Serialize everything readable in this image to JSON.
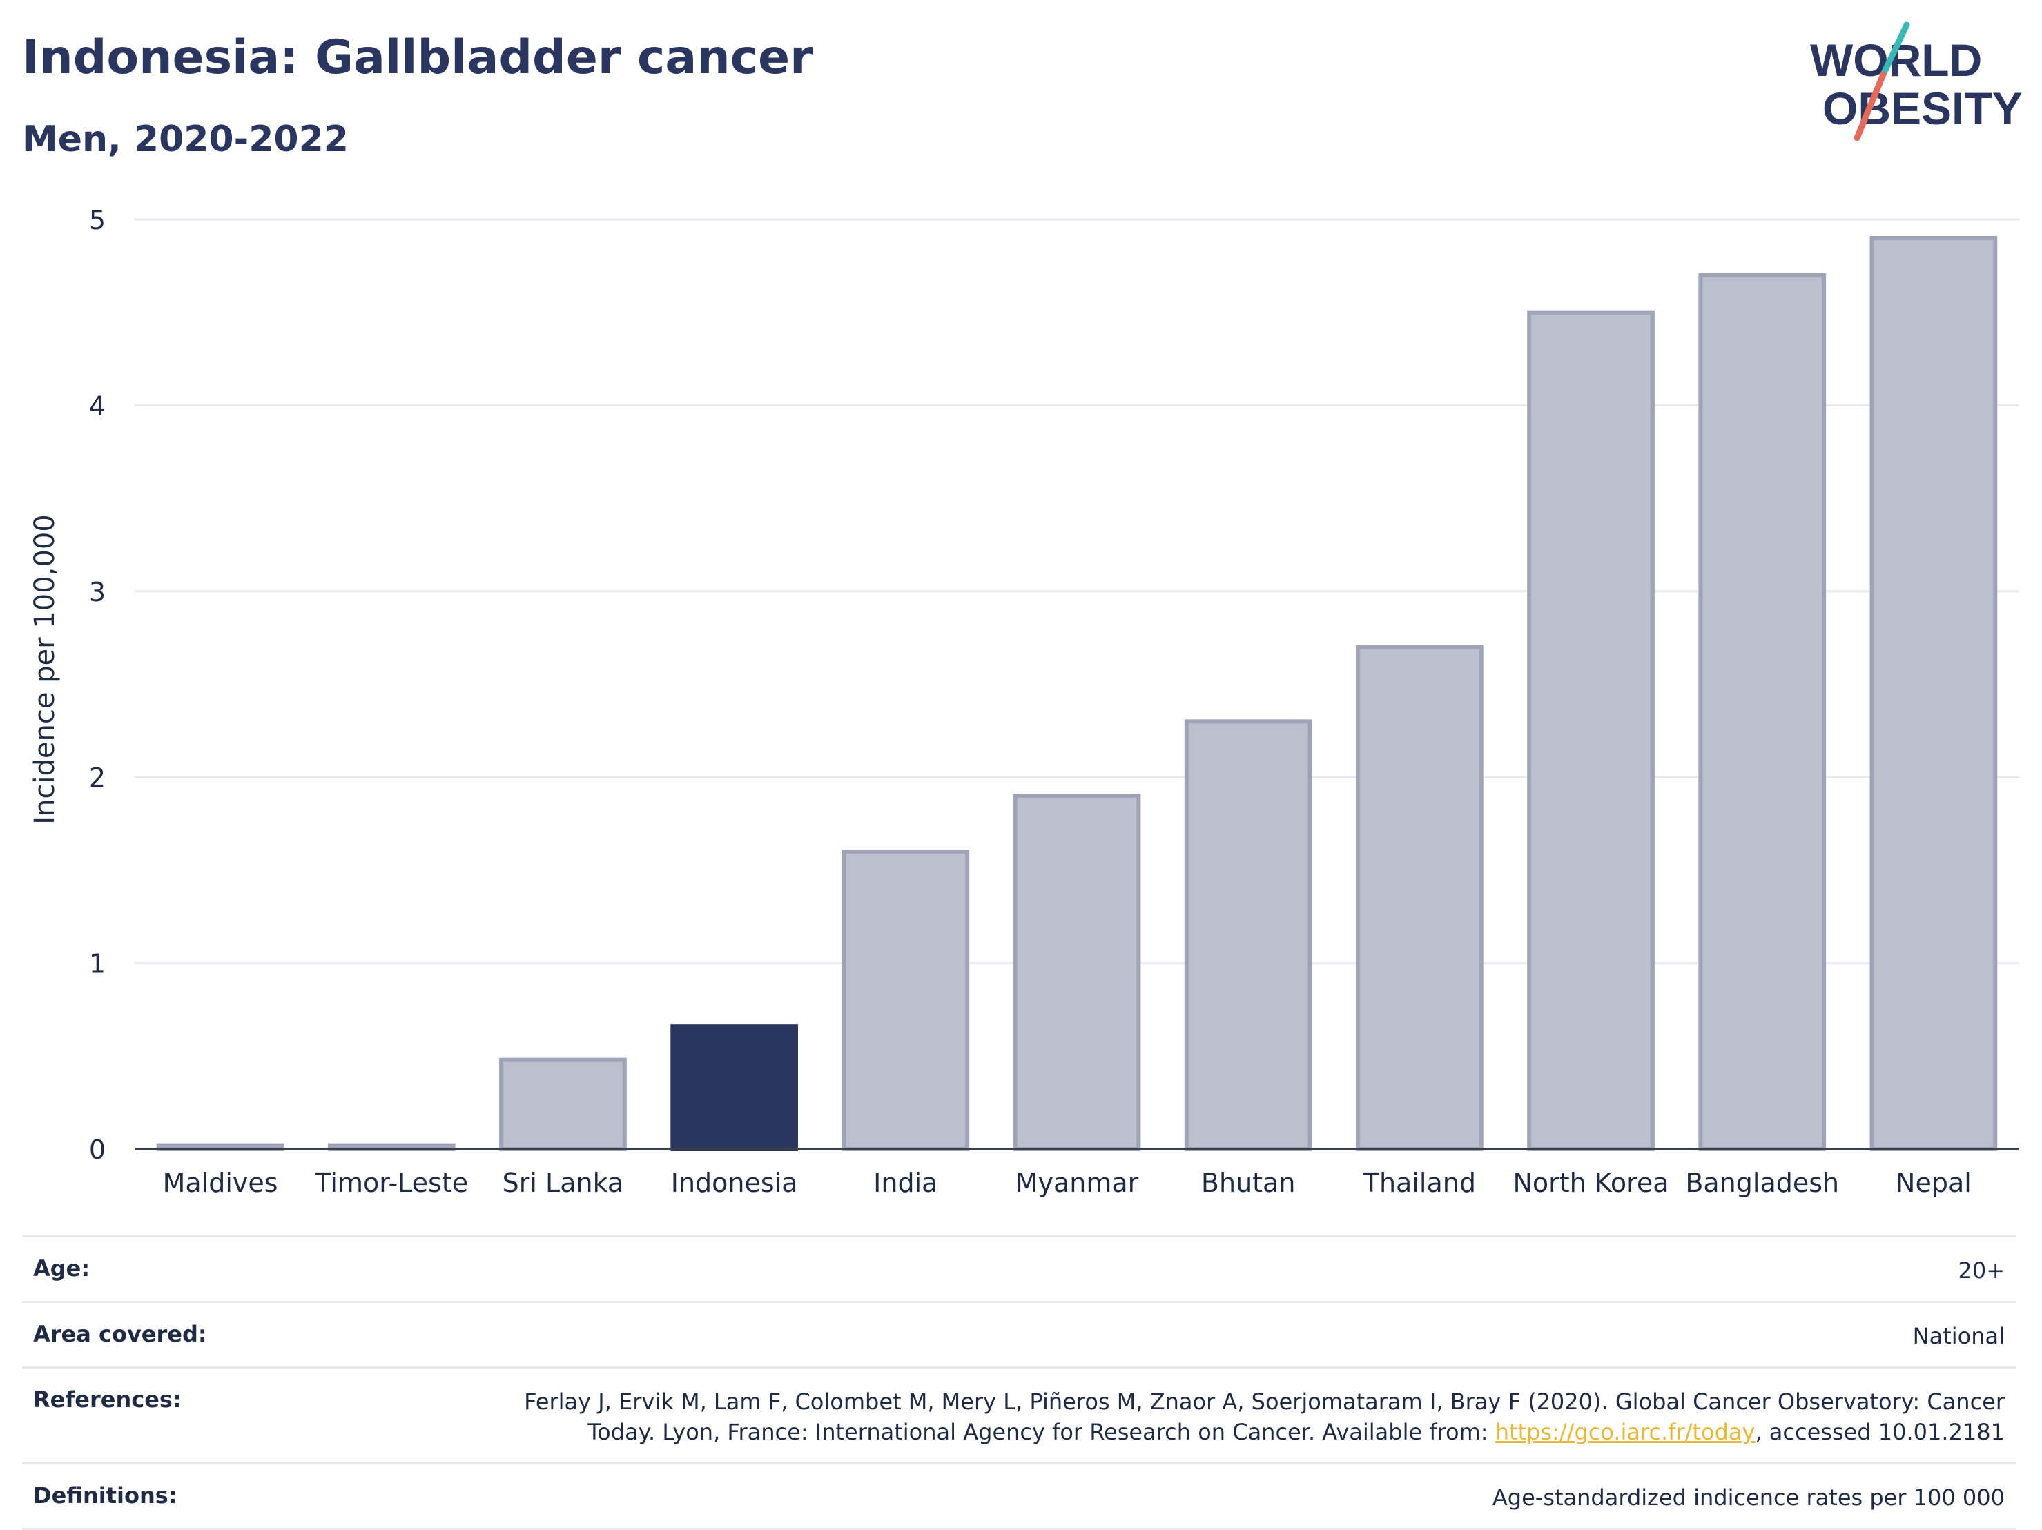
{
  "header": {
    "title": "Indonesia: Gallbladder cancer",
    "subtitle": "Men, 2020-2022"
  },
  "logo": {
    "line1": "WORLD",
    "line2": "OBESITY",
    "accent_colors": [
      "#3bb8b6",
      "#e46b5a"
    ],
    "text_color": "#2a3560"
  },
  "chart_data": {
    "type": "bar",
    "categories": [
      "Maldives",
      "Timor-Leste",
      "Sri Lanka",
      "Indonesia",
      "India",
      "Myanmar",
      "Bhutan",
      "Thailand",
      "North Korea",
      "Bangladesh",
      "Nepal"
    ],
    "values": [
      0.02,
      0.02,
      0.48,
      0.66,
      1.6,
      1.9,
      2.3,
      2.7,
      4.5,
      4.7,
      4.9
    ],
    "highlight": "Indonesia",
    "ylabel": "Incidence per 100,000",
    "xlabel": "",
    "ylim": [
      0,
      5
    ],
    "yticks": [
      0,
      1,
      2,
      3,
      4,
      5
    ],
    "grid": true,
    "colors": {
      "highlight": "#2a3560",
      "bar": "#bcc0ce",
      "bar_border": "#9ea3b8"
    }
  },
  "meta": {
    "age_label": "Age:",
    "age_value": "20+",
    "area_label": "Area covered:",
    "area_value": "National",
    "references_label": "References:",
    "references_line1": "Ferlay J, Ervik M, Lam F, Colombet M, Mery L, Piñeros M, Znaor A, Soerjomataram I, Bray F (2020). Global Cancer Observatory: Cancer",
    "references_line2_pre": "Today. Lyon, France: International Agency for Research on Cancer. Available from: ",
    "references_link": "https://gco.iarc.fr/today",
    "references_line2_post": ", accessed 10.01.2181",
    "definitions_label": "Definitions:",
    "definitions_value": "Age-standardized indicence rates per 100 000"
  }
}
